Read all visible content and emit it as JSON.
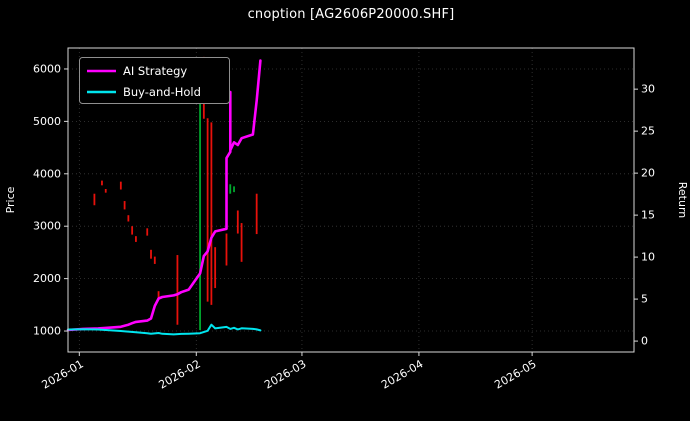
{
  "colors": {
    "background": "#000000",
    "text": "#ffffff",
    "axis": "#d9d9d9",
    "grid": "#3a3a3a",
    "red": "#e8110b",
    "green": "#00a82e",
    "legend_border": "#8f8f8f"
  },
  "chart_data": {
    "type": "line",
    "title": "cnoption [AG2606P20000.SHF]",
    "xlabel": "",
    "ylabel_left": "Price",
    "ylabel_right": "Return",
    "grid": true,
    "legend_position": "upper left",
    "x_tick_labels": [
      "2026-01",
      "2026-02",
      "2026-03",
      "2026-04",
      "2026-05"
    ],
    "x_range": [
      "2025-12-29",
      "2026-05-28"
    ],
    "left_axis": {
      "label": "Price",
      "ticks": [
        1000,
        2000,
        3000,
        4000,
        5000,
        6000
      ],
      "range": [
        600,
        6400
      ]
    },
    "right_axis": {
      "label": "Return",
      "ticks": [
        0,
        5,
        10,
        15,
        20,
        25,
        30
      ],
      "range": [
        -1.3,
        34.9
      ]
    },
    "series": [
      {
        "name": "AI Strategy",
        "color": "#FF00FF",
        "axis": "left",
        "width": 2.6,
        "points": [
          [
            "2025-12-29",
            1020
          ],
          [
            "2026-01-02",
            1040
          ],
          [
            "2026-01-06",
            1050
          ],
          [
            "2026-01-08",
            1060
          ],
          [
            "2026-01-12",
            1080
          ],
          [
            "2026-01-14",
            1120
          ],
          [
            "2026-01-15",
            1150
          ],
          [
            "2026-01-16",
            1175
          ],
          [
            "2026-01-19",
            1200
          ],
          [
            "2026-01-20",
            1240
          ],
          [
            "2026-01-21",
            1480
          ],
          [
            "2026-01-22",
            1620
          ],
          [
            "2026-01-23",
            1650
          ],
          [
            "2026-01-26",
            1680
          ],
          [
            "2026-01-27",
            1700
          ],
          [
            "2026-01-28",
            1740
          ],
          [
            "2026-01-30",
            1790
          ],
          [
            "2026-02-02",
            2100
          ],
          [
            "2026-02-03",
            2430
          ],
          [
            "2026-02-04",
            2520
          ],
          [
            "2026-02-05",
            2780
          ],
          [
            "2026-02-06",
            2900
          ],
          [
            "2026-02-09",
            2950
          ],
          [
            "2026-02-09",
            4300
          ],
          [
            "2026-02-10",
            4420
          ],
          [
            "2026-02-10",
            5560
          ],
          [
            "2026-02-10",
            4450
          ],
          [
            "2026-02-11",
            4600
          ],
          [
            "2026-02-12",
            4550
          ],
          [
            "2026-02-13",
            4680
          ],
          [
            "2026-02-16",
            4750
          ],
          [
            "2026-02-17",
            5400
          ],
          [
            "2026-02-18",
            6160
          ]
        ]
      },
      {
        "name": "Buy-and-Hold",
        "color": "#00E5EE",
        "axis": "left",
        "width": 2,
        "points": [
          [
            "2025-12-29",
            1030
          ],
          [
            "2026-01-02",
            1035
          ],
          [
            "2026-01-06",
            1030
          ],
          [
            "2026-01-08",
            1020
          ],
          [
            "2026-01-12",
            1000
          ],
          [
            "2026-01-14",
            990
          ],
          [
            "2026-01-16",
            975
          ],
          [
            "2026-01-19",
            958
          ],
          [
            "2026-01-20",
            948
          ],
          [
            "2026-01-22",
            962
          ],
          [
            "2026-01-23",
            948
          ],
          [
            "2026-01-26",
            935
          ],
          [
            "2026-01-28",
            945
          ],
          [
            "2026-01-30",
            950
          ],
          [
            "2026-02-02",
            958
          ],
          [
            "2026-02-04",
            1005
          ],
          [
            "2026-02-05",
            1120
          ],
          [
            "2026-02-06",
            1050
          ],
          [
            "2026-02-09",
            1078
          ],
          [
            "2026-02-10",
            1040
          ],
          [
            "2026-02-11",
            1062
          ],
          [
            "2026-02-12",
            1032
          ],
          [
            "2026-02-13",
            1052
          ],
          [
            "2026-02-16",
            1040
          ],
          [
            "2026-02-17",
            1032
          ],
          [
            "2026-02-18",
            1012
          ]
        ]
      }
    ],
    "candles": [
      {
        "date": "2026-01-05",
        "low": 3400,
        "high": 3620,
        "color": "red"
      },
      {
        "date": "2026-01-07",
        "low": 3780,
        "high": 3870,
        "color": "red"
      },
      {
        "date": "2026-01-08",
        "low": 3640,
        "high": 3710,
        "color": "red"
      },
      {
        "date": "2026-01-12",
        "low": 3700,
        "high": 3850,
        "color": "red"
      },
      {
        "date": "2026-01-13",
        "low": 3320,
        "high": 3480,
        "color": "red"
      },
      {
        "date": "2026-01-14",
        "low": 3090,
        "high": 3210,
        "color": "red"
      },
      {
        "date": "2026-01-15",
        "low": 2840,
        "high": 3000,
        "color": "red"
      },
      {
        "date": "2026-01-16",
        "low": 2700,
        "high": 2810,
        "color": "red"
      },
      {
        "date": "2026-01-19",
        "low": 2820,
        "high": 2960,
        "color": "red"
      },
      {
        "date": "2026-01-20",
        "low": 2380,
        "high": 2550,
        "color": "red"
      },
      {
        "date": "2026-01-21",
        "low": 2280,
        "high": 2420,
        "color": "red"
      },
      {
        "date": "2026-01-22",
        "low": 1600,
        "high": 1760,
        "color": "red"
      },
      {
        "date": "2026-01-27",
        "low": 1120,
        "high": 2450,
        "color": "red"
      },
      {
        "date": "2026-02-02",
        "low": 1020,
        "high": 6120,
        "color": "green"
      },
      {
        "date": "2026-02-03",
        "low": 5050,
        "high": 6230,
        "color": "red"
      },
      {
        "date": "2026-02-04",
        "low": 1560,
        "high": 5060,
        "color": "red"
      },
      {
        "date": "2026-02-05",
        "low": 1500,
        "high": 4980,
        "color": "red"
      },
      {
        "date": "2026-02-06",
        "low": 1820,
        "high": 2600,
        "color": "red"
      },
      {
        "date": "2026-02-09",
        "low": 2250,
        "high": 2860,
        "color": "red"
      },
      {
        "date": "2026-02-10",
        "low": 3620,
        "high": 3800,
        "color": "green"
      },
      {
        "date": "2026-02-11",
        "low": 3650,
        "high": 3760,
        "color": "green"
      },
      {
        "date": "2026-02-12",
        "low": 2860,
        "high": 3300,
        "color": "red"
      },
      {
        "date": "2026-02-13",
        "low": 2320,
        "high": 3060,
        "color": "red"
      },
      {
        "date": "2026-02-17",
        "low": 2850,
        "high": 3620,
        "color": "red"
      }
    ]
  }
}
